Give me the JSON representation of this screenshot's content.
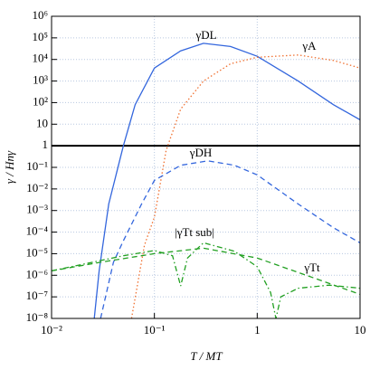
{
  "chart_data": {
    "type": "line",
    "x_label": "T / MT",
    "y_label": "γ / Hnγ",
    "xscale": "log",
    "yscale": "log",
    "grid": true,
    "xlim": [
      0.01,
      10
    ],
    "ylim": [
      1e-08,
      1000000
    ],
    "xticks": [
      {
        "value": 0.01,
        "label": "10⁻²"
      },
      {
        "value": 0.1,
        "label": "10⁻¹"
      },
      1,
      10
    ],
    "yticks": [
      {
        "value": 1000000,
        "label": "10⁶"
      },
      {
        "value": 100000,
        "label": "10⁵"
      },
      {
        "value": 10000,
        "label": "10⁴"
      },
      {
        "value": 1000,
        "label": "10³"
      },
      {
        "value": 100,
        "label": "10²"
      },
      10,
      1,
      {
        "value": 0.1,
        "label": "10⁻¹"
      },
      {
        "value": 0.01,
        "label": "10⁻²"
      },
      {
        "value": 0.001,
        "label": "10⁻³"
      },
      {
        "value": 0.0001,
        "label": "10⁻⁴"
      },
      {
        "value": 1e-05,
        "label": "10⁻⁵"
      },
      {
        "value": 1e-06,
        "label": "10⁻⁶"
      },
      {
        "value": 1e-07,
        "label": "10⁻⁷"
      },
      {
        "value": 1e-08,
        "label": "10⁻⁸"
      }
    ],
    "reference_line": {
      "value": 1,
      "color": "#000000"
    },
    "series": [
      {
        "name": "γDL",
        "color": "#3366dd",
        "style": "solid",
        "x": [
          0.026,
          0.029,
          0.036,
          0.05,
          0.065,
          0.1,
          0.18,
          0.3,
          0.55,
          1,
          2.5,
          5.5,
          10
        ],
        "values": [
          1e-08,
          1.6e-06,
          0.002,
          1,
          80,
          4000,
          25000,
          56000,
          40000,
          14000,
          1000,
          80,
          16
        ]
      },
      {
        "name": "γA",
        "color": "#f07030",
        "style": "dotted",
        "x": [
          0.06,
          0.08,
          0.1,
          0.13,
          0.18,
          0.3,
          0.55,
          1,
          2.5,
          5.5,
          10
        ],
        "values": [
          1e-08,
          2.5e-05,
          0.0005,
          0.6,
          50,
          1000,
          6300,
          12600,
          16000,
          9000,
          4000
        ]
      },
      {
        "name": "γDH",
        "color": "#3366dd",
        "style": "dashed",
        "x": [
          0.03,
          0.04,
          0.05,
          0.075,
          0.1,
          0.18,
          0.33,
          0.6,
          1,
          2.5,
          5.5,
          10
        ],
        "values": [
          1e-08,
          4e-06,
          4e-05,
          0.002,
          0.025,
          0.125,
          0.2,
          0.125,
          0.045,
          0.002,
          0.00016,
          3.2e-05
        ]
      },
      {
        "name": "|γTt sub|",
        "color": "#22a022",
        "style": "dashdot",
        "x": [
          0.01,
          0.05,
          0.1,
          0.15,
          0.18,
          0.21,
          0.3,
          0.6,
          1,
          1.35,
          1.52,
          1.7,
          2.5,
          5,
          10
        ],
        "values": [
          1.6e-06,
          8e-06,
          1.4e-05,
          8e-06,
          3.2e-07,
          6.3e-06,
          3.2e-05,
          1.3e-05,
          2.5e-06,
          1.6e-07,
          1e-08,
          1e-07,
          2.5e-07,
          3.5e-07,
          2.5e-07
        ]
      },
      {
        "name": "γTt",
        "color": "#22a022",
        "style": "dashed",
        "x": [
          0.01,
          0.03,
          0.1,
          0.3,
          1,
          3,
          10
        ],
        "values": [
          1.6e-06,
          4e-06,
          1e-05,
          1.8e-05,
          6.3e-06,
          1e-06,
          1.3e-07
        ]
      }
    ]
  }
}
